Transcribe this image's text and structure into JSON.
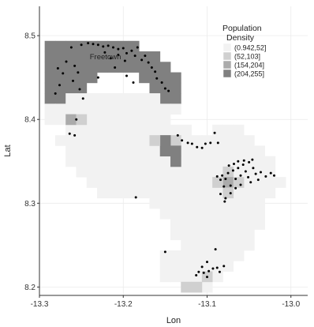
{
  "chart_data": {
    "type": "heatmap",
    "xlabel": "Lon",
    "ylabel": "Lat",
    "xlim": [
      -13.3,
      -12.98
    ],
    "ylim": [
      8.19,
      8.535
    ],
    "x_ticks": [
      {
        "value": -13.3,
        "label": "-13.3"
      },
      {
        "value": -13.2,
        "label": "-13.2"
      },
      {
        "value": -13.1,
        "label": "-13.1"
      },
      {
        "value": -13.0,
        "label": "-13.0"
      }
    ],
    "y_ticks": [
      {
        "value": 8.2,
        "label": "8.2"
      },
      {
        "value": 8.3,
        "label": "8.3"
      },
      {
        "value": 8.4,
        "label": "8.4"
      },
      {
        "value": 8.5,
        "label": "8.5"
      }
    ],
    "grid": true,
    "legend": {
      "title_line1": "Population",
      "title_line2": "Density",
      "placement": "top-right",
      "entries": [
        {
          "label": "(0.942,52]",
          "color": "#f2f2f2"
        },
        {
          "label": "(52,103]",
          "color": "#d0d0d0"
        },
        {
          "label": "(154,204]",
          "color": "#ababab"
        },
        {
          "label": "(204,255]",
          "color": "#808080"
        }
      ]
    },
    "cell_size": 0.0125,
    "level_colors": {
      "0": "#f2f2f2",
      "1": "#d0d0d0",
      "2": "#ababab",
      "3": "#808080"
    },
    "cell_rows": [
      {
        "lat": 8.4875,
        "level": 3,
        "ranges": [
          [
            -13.2875,
            -13.1875
          ]
        ]
      },
      {
        "lat": 8.475,
        "level": 3,
        "ranges": [
          [
            -13.2875,
            -13.1625
          ]
        ]
      },
      {
        "lat": 8.4625,
        "level": 3,
        "ranges": [
          [
            -13.2875,
            -13.15
          ]
        ]
      },
      {
        "lat": 8.45,
        "level": 3,
        "ranges": [
          [
            -13.2875,
            -13.2375
          ],
          [
            -13.175,
            -13.1375
          ]
        ]
      },
      {
        "lat": 8.4375,
        "level": 3,
        "ranges": [
          [
            -13.2875,
            -13.25
          ],
          [
            -13.1625,
            -13.1375
          ]
        ]
      },
      {
        "lat": 8.425,
        "level": 3,
        "ranges": [
          [
            -13.2875,
            -13.2625
          ],
          [
            -13.15,
            -13.1375
          ]
        ]
      },
      {
        "lat": 8.425,
        "level": 0,
        "ranges": [
          [
            -13.2625,
            -13.1625
          ]
        ]
      },
      {
        "lat": 8.4125,
        "level": 0,
        "ranges": [
          [
            -13.2875,
            -13.1375
          ]
        ]
      },
      {
        "lat": 8.4,
        "level": 0,
        "ranges": [
          [
            -13.2875,
            -13.15
          ]
        ]
      },
      {
        "lat": 8.3875,
        "level": 0,
        "ranges": [
          [
            -13.2625,
            -13.125
          ],
          [
            -13.0875,
            -13.0625
          ]
        ]
      },
      {
        "lat": 8.375,
        "level": 0,
        "ranges": [
          [
            -13.275,
            -13.05
          ]
        ]
      },
      {
        "lat": 8.3625,
        "level": 0,
        "ranges": [
          [
            -13.2625,
            -13.0375
          ]
        ]
      },
      {
        "lat": 8.35,
        "level": 0,
        "ranges": [
          [
            -13.2625,
            -13.025
          ]
        ]
      },
      {
        "lat": 8.3375,
        "level": 0,
        "ranges": [
          [
            -13.25,
            -13.025
          ]
        ]
      },
      {
        "lat": 8.325,
        "level": 0,
        "ranges": [
          [
            -13.2375,
            -13.0125
          ]
        ]
      },
      {
        "lat": 8.3125,
        "level": 0,
        "ranges": [
          [
            -13.225,
            -13.025
          ]
        ]
      },
      {
        "lat": 8.3,
        "level": 0,
        "ranges": [
          [
            -13.1625,
            -13.0375
          ]
        ]
      },
      {
        "lat": 8.2875,
        "level": 0,
        "ranges": [
          [
            -13.15,
            -13.0375
          ]
        ]
      },
      {
        "lat": 8.275,
        "level": 0,
        "ranges": [
          [
            -13.1375,
            -13.0375
          ]
        ]
      },
      {
        "lat": 8.2625,
        "level": 0,
        "ranges": [
          [
            -13.1375,
            -13.05
          ]
        ]
      },
      {
        "lat": 8.25,
        "level": 0,
        "ranges": [
          [
            -13.125,
            -13.05
          ]
        ]
      },
      {
        "lat": 8.2375,
        "level": 0,
        "ranges": [
          [
            -13.15,
            -13.0625
          ]
        ]
      },
      {
        "lat": 8.225,
        "level": 0,
        "ranges": [
          [
            -13.15,
            -13.075
          ]
        ]
      },
      {
        "lat": 8.2125,
        "level": 0,
        "ranges": [
          [
            -13.15,
            -13.0875
          ]
        ]
      },
      {
        "lat": 8.2,
        "level": 0,
        "ranges": [
          [
            -13.125,
            -13.1
          ]
        ]
      }
    ],
    "cells": [
      {
        "lon": -13.2625,
        "lat": 8.4,
        "level": 2
      },
      {
        "lon": -13.25,
        "lat": 8.4,
        "level": 1
      },
      {
        "lon": -13.1375,
        "lat": 8.375,
        "level": 1
      },
      {
        "lon": -13.15,
        "lat": 8.375,
        "level": 3
      },
      {
        "lon": -13.1375,
        "lat": 8.3625,
        "level": 3
      },
      {
        "lon": -13.15,
        "lat": 8.3625,
        "level": 3
      },
      {
        "lon": -13.1375,
        "lat": 8.35,
        "level": 3
      },
      {
        "lon": -13.1625,
        "lat": 8.375,
        "level": 1
      },
      {
        "lon": -13.075,
        "lat": 8.3375,
        "level": 1
      },
      {
        "lon": -13.075,
        "lat": 8.325,
        "level": 2
      },
      {
        "lon": -13.075,
        "lat": 8.3125,
        "level": 1
      },
      {
        "lon": -13.0625,
        "lat": 8.325,
        "level": 1
      },
      {
        "lon": -13.0875,
        "lat": 8.325,
        "level": 1
      },
      {
        "lon": -13.125,
        "lat": 8.2,
        "level": 1
      },
      {
        "lon": -13.1125,
        "lat": 8.2,
        "level": 1
      },
      {
        "lon": -13.1,
        "lat": 8.2125,
        "level": 1
      }
    ],
    "annotations": [
      {
        "text": "Freetown",
        "lon": -13.24,
        "lat": 8.472
      }
    ],
    "points": [
      [
        -13.262,
        8.486
      ],
      [
        -13.25,
        8.489
      ],
      [
        -13.242,
        8.491
      ],
      [
        -13.236,
        8.49
      ],
      [
        -13.23,
        8.489
      ],
      [
        -13.224,
        8.487
      ],
      [
        -13.218,
        8.488
      ],
      [
        -13.212,
        8.486
      ],
      [
        -13.206,
        8.484
      ],
      [
        -13.2,
        8.485
      ],
      [
        -13.196,
        8.479
      ],
      [
        -13.19,
        8.482
      ],
      [
        -13.186,
        8.476
      ],
      [
        -13.183,
        8.486
      ],
      [
        -13.178,
        8.471
      ],
      [
        -13.174,
        8.476
      ],
      [
        -13.17,
        8.468
      ],
      [
        -13.166,
        8.462
      ],
      [
        -13.162,
        8.457
      ],
      [
        -13.16,
        8.449
      ],
      [
        -13.154,
        8.444
      ],
      [
        -13.15,
        8.437
      ],
      [
        -13.146,
        8.434
      ],
      [
        -13.222,
        8.48
      ],
      [
        -13.215,
        8.473
      ],
      [
        -13.206,
        8.477
      ],
      [
        -13.198,
        8.47
      ],
      [
        -13.21,
        8.462
      ],
      [
        -13.278,
        8.461
      ],
      [
        -13.272,
        8.455
      ],
      [
        -13.268,
        8.469
      ],
      [
        -13.258,
        8.464
      ],
      [
        -13.254,
        8.456
      ],
      [
        -13.26,
        8.446
      ],
      [
        -13.276,
        8.441
      ],
      [
        -13.281,
        8.431
      ],
      [
        -13.252,
        8.436
      ],
      [
        -13.248,
        8.425
      ],
      [
        -13.23,
        8.45
      ],
      [
        -13.196,
        8.452
      ],
      [
        -13.188,
        8.444
      ],
      [
        -13.256,
        8.4
      ],
      [
        -13.264,
        8.383
      ],
      [
        -13.258,
        8.381
      ],
      [
        -13.135,
        8.381
      ],
      [
        -13.13,
        8.375
      ],
      [
        -13.123,
        8.372
      ],
      [
        -13.118,
        8.371
      ],
      [
        -13.112,
        8.367
      ],
      [
        -13.106,
        8.366
      ],
      [
        -13.102,
        8.371
      ],
      [
        -13.096,
        8.372
      ],
      [
        -13.091,
        8.384
      ],
      [
        -13.087,
        8.372
      ],
      [
        -13.082,
        8.333
      ],
      [
        -13.078,
        8.329
      ],
      [
        -13.075,
        8.336
      ],
      [
        -13.072,
        8.321
      ],
      [
        -13.069,
        8.339
      ],
      [
        -13.066,
        8.329
      ],
      [
        -13.063,
        8.342
      ],
      [
        -13.06,
        8.333
      ],
      [
        -13.057,
        8.346
      ],
      [
        -13.054,
        8.338
      ],
      [
        -13.051,
        8.331
      ],
      [
        -13.048,
        8.325
      ],
      [
        -13.045,
        8.342
      ],
      [
        -13.042,
        8.335
      ],
      [
        -13.039,
        8.328
      ],
      [
        -13.036,
        8.337
      ],
      [
        -13.06,
        8.322
      ],
      [
        -13.066,
        8.318
      ],
      [
        -13.072,
        8.312
      ],
      [
        -13.078,
        8.306
      ],
      [
        -13.084,
        8.328
      ],
      [
        -13.088,
        8.332
      ],
      [
        -13.08,
        8.32
      ],
      [
        -13.03,
        8.332
      ],
      [
        -13.024,
        8.336
      ],
      [
        -13.02,
        8.333
      ],
      [
        -13.074,
        8.345
      ],
      [
        -13.068,
        8.347
      ],
      [
        -13.063,
        8.35
      ],
      [
        -13.056,
        8.351
      ],
      [
        -13.05,
        8.349
      ],
      [
        -13.046,
        8.352
      ],
      [
        -13.084,
        8.311
      ],
      [
        -13.079,
        8.302
      ],
      [
        -13.185,
        8.307
      ],
      [
        -13.15,
        8.242
      ],
      [
        -13.09,
        8.245
      ],
      [
        -13.1,
        8.23
      ],
      [
        -13.106,
        8.224
      ],
      [
        -13.11,
        8.218
      ],
      [
        -13.104,
        8.217
      ],
      [
        -13.098,
        8.219
      ],
      [
        -13.093,
        8.222
      ],
      [
        -13.088,
        8.223
      ],
      [
        -13.085,
        8.218
      ],
      [
        -13.08,
        8.225
      ],
      [
        -13.113,
        8.214
      ],
      [
        -13.1,
        8.212
      ]
    ]
  }
}
